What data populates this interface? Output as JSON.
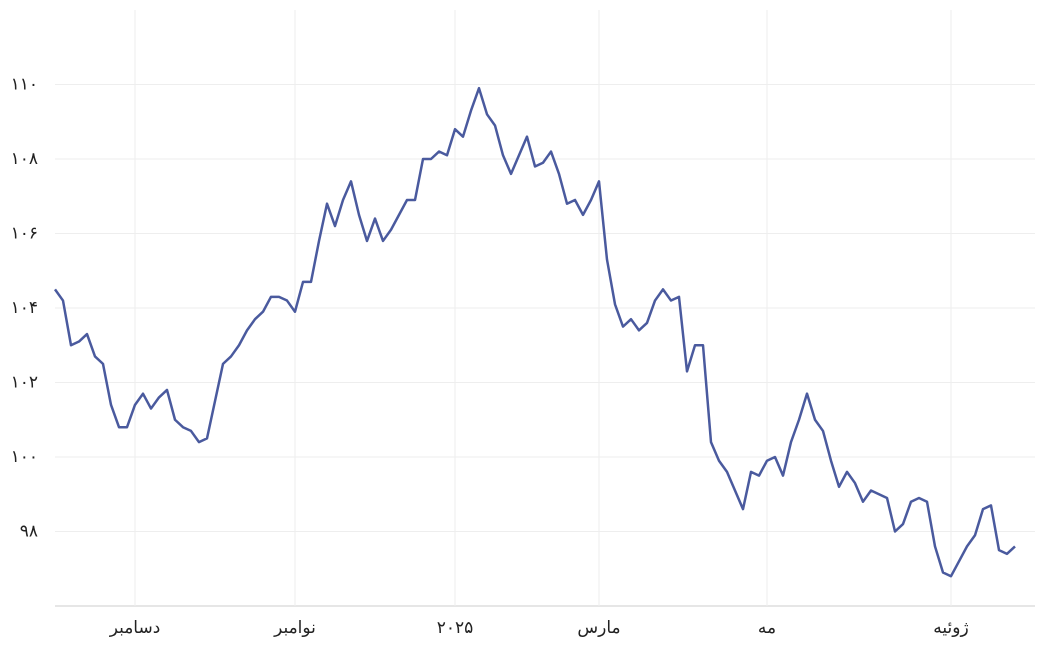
{
  "chart_data": {
    "type": "line",
    "categories": [
      null,
      null,
      null,
      null,
      null,
      null,
      null,
      null,
      null,
      null,
      "دسامبر",
      null,
      null,
      null,
      null,
      null,
      null,
      null,
      null,
      null,
      null,
      null,
      null,
      null,
      null,
      null,
      null,
      null,
      null,
      null,
      "نوامبر",
      null,
      null,
      null,
      null,
      null,
      null,
      null,
      null,
      null,
      null,
      null,
      null,
      null,
      null,
      null,
      null,
      null,
      null,
      null,
      "۲۰۲۵",
      null,
      null,
      null,
      null,
      null,
      null,
      null,
      null,
      null,
      null,
      null,
      null,
      null,
      null,
      null,
      null,
      null,
      "مارس",
      null,
      null,
      null,
      null,
      null,
      null,
      null,
      null,
      null,
      null,
      null,
      null,
      null,
      null,
      null,
      null,
      null,
      null,
      null,
      null,
      "مه",
      null,
      null,
      null,
      null,
      null,
      null,
      null,
      null,
      null,
      null,
      null,
      null,
      null,
      null,
      null,
      null,
      null,
      null,
      null,
      null,
      null,
      null,
      "ژوئیه",
      null,
      null,
      null,
      null,
      null,
      null,
      null,
      null
    ],
    "values": [
      104.5,
      104.2,
      103.0,
      103.1,
      103.3,
      102.7,
      102.5,
      101.4,
      100.8,
      100.8,
      101.4,
      101.7,
      101.3,
      101.6,
      101.8,
      101.0,
      100.8,
      100.7,
      100.4,
      100.5,
      101.5,
      102.5,
      102.7,
      103.0,
      103.4,
      103.7,
      103.9,
      104.3,
      104.3,
      104.2,
      103.9,
      104.7,
      104.7,
      105.8,
      106.8,
      106.2,
      106.9,
      107.4,
      106.5,
      105.8,
      106.4,
      105.8,
      106.1,
      106.5,
      106.9,
      106.9,
      108.0,
      108.0,
      108.2,
      108.1,
      108.8,
      108.6,
      109.3,
      109.9,
      109.2,
      108.9,
      108.1,
      107.6,
      108.1,
      108.6,
      107.8,
      107.9,
      108.2,
      107.6,
      106.8,
      106.9,
      106.5,
      106.9,
      107.4,
      105.3,
      104.1,
      103.5,
      103.7,
      103.4,
      103.6,
      104.2,
      104.5,
      104.2,
      104.3,
      102.3,
      103.0,
      103.0,
      100.4,
      99.9,
      99.6,
      99.1,
      98.6,
      99.6,
      99.5,
      99.9,
      100.0,
      99.5,
      100.4,
      101.0,
      101.7,
      101.0,
      100.7,
      99.9,
      99.2,
      99.6,
      99.3,
      98.8,
      99.1,
      99.0,
      98.9,
      98.0,
      98.2,
      98.8,
      98.9,
      98.8,
      97.6,
      96.9,
      96.8,
      97.2,
      97.6,
      97.9,
      98.6,
      98.7,
      97.5,
      97.4,
      97.6
    ],
    "color": "#4a5a9e",
    "ylim": [
      96,
      112
    ],
    "yticks": [
      {
        "value": 98,
        "label": "۹۸"
      },
      {
        "value": 100,
        "label": "۱۰۰"
      },
      {
        "value": 102,
        "label": "۱۰۲"
      },
      {
        "value": 104,
        "label": "۱۰۴"
      },
      {
        "value": 106,
        "label": "۱۰۶"
      },
      {
        "value": 108,
        "label": "۱۰۸"
      },
      {
        "value": 110,
        "label": "۱۱۰"
      }
    ],
    "grid": true
  }
}
